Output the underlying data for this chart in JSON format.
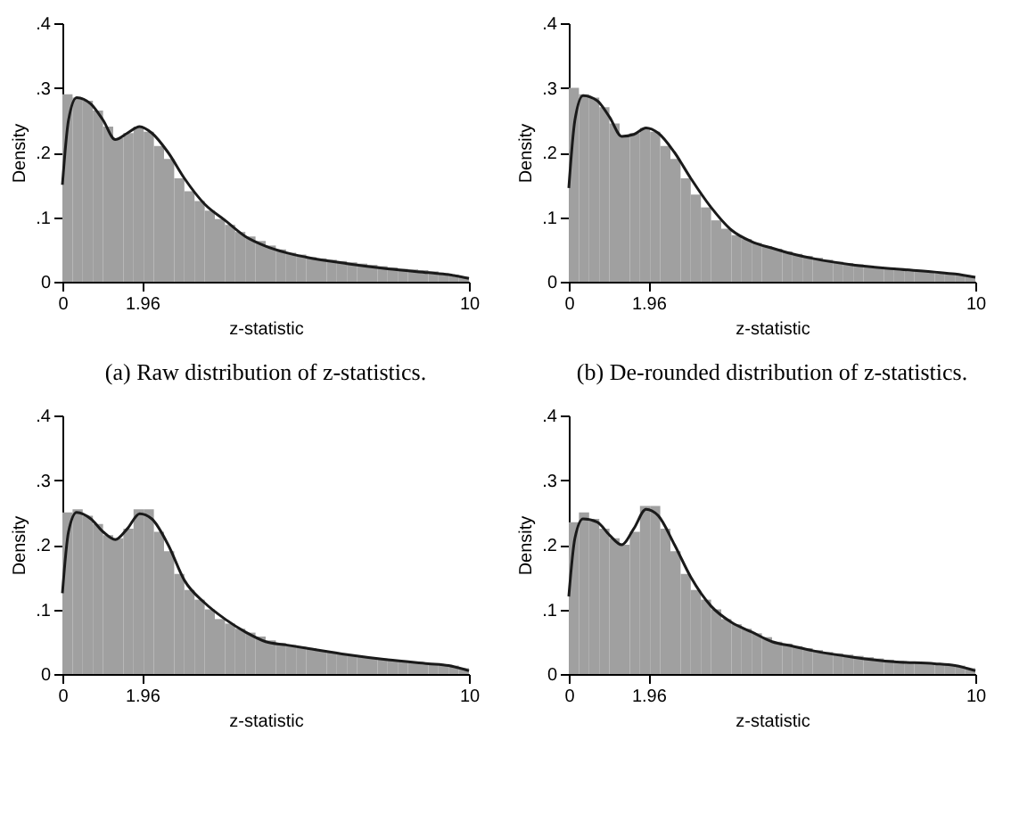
{
  "chart_data": [
    {
      "type": "histogram",
      "annotations": [
        "(a) Raw distribution of z-statistics."
      ],
      "xlabel": "z-statistic",
      "ylabel": "Density",
      "xlim": [
        0,
        10
      ],
      "xticks": [
        0,
        1.96,
        10
      ],
      "ylim": [
        0,
        0.4
      ],
      "yticks": [
        {
          "value": 0,
          "label": "0"
        },
        {
          "value": 0.1,
          "label": ".1"
        },
        {
          "value": 0.2,
          "label": ".2"
        },
        {
          "value": 0.3,
          "label": ".3"
        },
        {
          "value": 0.4,
          "label": ".4"
        }
      ],
      "grid": false,
      "color": "#a0a0a0",
      "bins": [
        0,
        0.25,
        0.5,
        0.75,
        1,
        1.25,
        1.5,
        1.75,
        2,
        2.25,
        2.5,
        2.75,
        3,
        3.25,
        3.5,
        3.75,
        4,
        4.25,
        4.5,
        4.75,
        5,
        5.25,
        5.5,
        5.75,
        6,
        6.25,
        6.5,
        6.75,
        7,
        7.25,
        7.5,
        7.75,
        8,
        8.25,
        8.5,
        8.75,
        9,
        9.25,
        9.5,
        9.75,
        10
      ],
      "values": [
        0.29,
        0.285,
        0.28,
        0.265,
        0.24,
        0.222,
        0.23,
        0.24,
        0.232,
        0.21,
        0.19,
        0.16,
        0.14,
        0.125,
        0.11,
        0.097,
        0.088,
        0.077,
        0.07,
        0.063,
        0.056,
        0.05,
        0.045,
        0.042,
        0.038,
        0.036,
        0.034,
        0.032,
        0.03,
        0.028,
        0.026,
        0.024,
        0.022,
        0.02,
        0.019,
        0.018,
        0.016,
        0.013,
        0.011,
        0.008
      ],
      "series": [
        {
          "type": "line",
          "color": "#1a1a1a",
          "x": [
            0,
            0.15,
            0.35,
            0.7,
            1.0,
            1.3,
            1.6,
            1.9,
            2.2,
            2.6,
            3.0,
            3.5,
            4.0,
            4.5,
            5,
            5.5,
            6,
            7,
            8,
            9,
            9.5,
            10
          ],
          "values": [
            0.15,
            0.25,
            0.285,
            0.275,
            0.25,
            0.22,
            0.23,
            0.24,
            0.23,
            0.2,
            0.16,
            0.12,
            0.095,
            0.07,
            0.055,
            0.045,
            0.038,
            0.028,
            0.02,
            0.014,
            0.011,
            0.005
          ]
        }
      ]
    },
    {
      "type": "histogram",
      "annotations": [
        "(b) De-rounded distribution of z-statistics."
      ],
      "xlabel": "z-statistic",
      "ylabel": "Density",
      "xlim": [
        0,
        10
      ],
      "xticks": [
        0,
        1.96,
        10
      ],
      "ylim": [
        0,
        0.4
      ],
      "yticks": [
        {
          "value": 0,
          "label": "0"
        },
        {
          "value": 0.1,
          "label": ".1"
        },
        {
          "value": 0.2,
          "label": ".2"
        },
        {
          "value": 0.3,
          "label": ".3"
        },
        {
          "value": 0.4,
          "label": ".4"
        }
      ],
      "grid": false,
      "color": "#a0a0a0",
      "bins": [
        0,
        0.25,
        0.5,
        0.75,
        1,
        1.25,
        1.5,
        1.75,
        2,
        2.25,
        2.5,
        2.75,
        3,
        3.25,
        3.5,
        3.75,
        4,
        4.25,
        4.5,
        4.75,
        5,
        5.25,
        5.5,
        5.75,
        6,
        6.25,
        6.5,
        6.75,
        7,
        7.25,
        7.5,
        7.75,
        8,
        8.25,
        8.5,
        8.75,
        9,
        9.25,
        9.5,
        9.75,
        10
      ],
      "values": [
        0.3,
        0.29,
        0.285,
        0.27,
        0.245,
        0.225,
        0.23,
        0.238,
        0.232,
        0.21,
        0.19,
        0.16,
        0.135,
        0.115,
        0.095,
        0.082,
        0.072,
        0.066,
        0.06,
        0.055,
        0.051,
        0.047,
        0.043,
        0.04,
        0.037,
        0.034,
        0.031,
        0.029,
        0.027,
        0.025,
        0.023,
        0.021,
        0.02,
        0.019,
        0.018,
        0.016,
        0.015,
        0.013,
        0.011,
        0.008
      ],
      "series": [
        {
          "type": "line",
          "color": "#1a1a1a",
          "x": [
            0,
            0.15,
            0.35,
            0.7,
            1.0,
            1.3,
            1.6,
            1.9,
            2.2,
            2.6,
            3.0,
            3.5,
            4.0,
            4.5,
            5,
            5.5,
            6,
            7,
            8,
            9,
            9.5,
            10
          ],
          "values": [
            0.145,
            0.25,
            0.288,
            0.28,
            0.255,
            0.225,
            0.228,
            0.238,
            0.23,
            0.2,
            0.16,
            0.115,
            0.08,
            0.062,
            0.052,
            0.043,
            0.036,
            0.026,
            0.02,
            0.015,
            0.012,
            0.007
          ]
        }
      ]
    },
    {
      "type": "histogram",
      "xlabel": "z-statistic",
      "ylabel": "Density",
      "xlim": [
        0,
        10
      ],
      "xticks": [
        0,
        1.96,
        10
      ],
      "ylim": [
        0,
        0.4
      ],
      "yticks": [
        {
          "value": 0,
          "label": "0"
        },
        {
          "value": 0.1,
          "label": ".1"
        },
        {
          "value": 0.2,
          "label": ".2"
        },
        {
          "value": 0.3,
          "label": ".3"
        },
        {
          "value": 0.4,
          "label": ".4"
        }
      ],
      "grid": false,
      "color": "#a0a0a0",
      "bins": [
        0,
        0.25,
        0.5,
        0.75,
        1,
        1.25,
        1.5,
        1.75,
        2,
        2.25,
        2.5,
        2.75,
        3,
        3.25,
        3.5,
        3.75,
        4,
        4.25,
        4.5,
        4.75,
        5,
        5.25,
        5.5,
        5.75,
        6,
        6.25,
        6.5,
        6.75,
        7,
        7.25,
        7.5,
        7.75,
        8,
        8.25,
        8.5,
        8.75,
        9,
        9.25,
        9.5,
        9.75,
        10
      ],
      "values": [
        0.25,
        0.255,
        0.245,
        0.232,
        0.215,
        0.21,
        0.225,
        0.255,
        0.255,
        0.22,
        0.19,
        0.155,
        0.13,
        0.115,
        0.1,
        0.085,
        0.078,
        0.07,
        0.064,
        0.058,
        0.052,
        0.048,
        0.045,
        0.042,
        0.04,
        0.037,
        0.034,
        0.031,
        0.029,
        0.027,
        0.025,
        0.024,
        0.022,
        0.02,
        0.019,
        0.017,
        0.016,
        0.015,
        0.013,
        0.009
      ],
      "series": [
        {
          "type": "line",
          "color": "#1a1a1a",
          "x": [
            0,
            0.15,
            0.35,
            0.7,
            1.0,
            1.3,
            1.6,
            1.9,
            2.2,
            2.6,
            3.0,
            3.5,
            4.0,
            4.5,
            5,
            5.5,
            6,
            7,
            8,
            9,
            9.5,
            10
          ],
          "values": [
            0.125,
            0.22,
            0.25,
            0.24,
            0.22,
            0.208,
            0.225,
            0.248,
            0.24,
            0.2,
            0.145,
            0.11,
            0.085,
            0.065,
            0.05,
            0.045,
            0.04,
            0.03,
            0.022,
            0.016,
            0.013,
            0.005
          ]
        }
      ]
    },
    {
      "type": "histogram",
      "xlabel": "z-statistic",
      "ylabel": "Density",
      "xlim": [
        0,
        10
      ],
      "xticks": [
        0,
        1.96,
        10
      ],
      "ylim": [
        0,
        0.4
      ],
      "yticks": [
        {
          "value": 0,
          "label": "0"
        },
        {
          "value": 0.1,
          "label": ".1"
        },
        {
          "value": 0.2,
          "label": ".2"
        },
        {
          "value": 0.3,
          "label": ".3"
        },
        {
          "value": 0.4,
          "label": ".4"
        }
      ],
      "grid": false,
      "color": "#a0a0a0",
      "bins": [
        0,
        0.25,
        0.5,
        0.75,
        1,
        1.25,
        1.5,
        1.75,
        2,
        2.25,
        2.5,
        2.75,
        3,
        3.25,
        3.5,
        3.75,
        4,
        4.25,
        4.5,
        4.75,
        5,
        5.25,
        5.5,
        5.75,
        6,
        6.25,
        6.5,
        6.75,
        7,
        7.25,
        7.5,
        7.75,
        8,
        8.25,
        8.5,
        8.75,
        9,
        9.25,
        9.5,
        9.75,
        10
      ],
      "values": [
        0.235,
        0.25,
        0.24,
        0.225,
        0.21,
        0.2,
        0.22,
        0.26,
        0.26,
        0.225,
        0.19,
        0.155,
        0.13,
        0.115,
        0.1,
        0.085,
        0.077,
        0.07,
        0.063,
        0.057,
        0.05,
        0.047,
        0.043,
        0.04,
        0.037,
        0.034,
        0.032,
        0.03,
        0.028,
        0.026,
        0.024,
        0.022,
        0.02,
        0.019,
        0.018,
        0.017,
        0.016,
        0.015,
        0.013,
        0.009
      ],
      "series": [
        {
          "type": "line",
          "color": "#1a1a1a",
          "x": [
            0,
            0.15,
            0.35,
            0.7,
            1.0,
            1.3,
            1.6,
            1.9,
            2.2,
            2.6,
            3.0,
            3.5,
            4.0,
            4.5,
            5,
            5.5,
            6,
            7,
            8,
            9,
            9.5,
            10
          ],
          "values": [
            0.12,
            0.21,
            0.24,
            0.235,
            0.215,
            0.2,
            0.225,
            0.255,
            0.245,
            0.2,
            0.15,
            0.105,
            0.08,
            0.065,
            0.05,
            0.043,
            0.036,
            0.026,
            0.019,
            0.016,
            0.013,
            0.005
          ]
        }
      ]
    }
  ]
}
